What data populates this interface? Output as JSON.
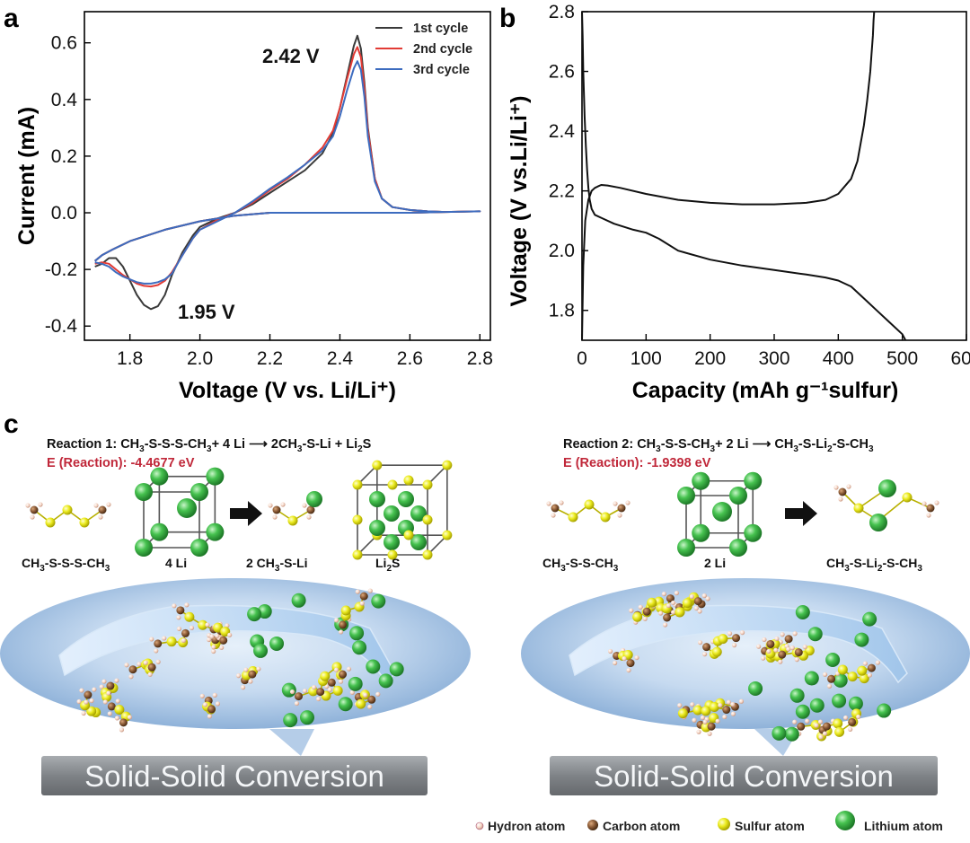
{
  "panels": {
    "a": "a",
    "b": "b",
    "c": "c"
  },
  "chart_data": [
    {
      "type": "line",
      "panel": "a",
      "xlabel": "Voltage (V vs. Li/Li⁺)",
      "ylabel": "Current (mA)",
      "xlim": [
        1.67,
        2.83
      ],
      "ylim": [
        -0.45,
        0.71
      ],
      "xticks": [
        1.8,
        2.0,
        2.2,
        2.4,
        2.6,
        2.8
      ],
      "xtick_labels": [
        "1.8",
        "2.0",
        "2.2",
        "2.4",
        "2.6",
        "2.8"
      ],
      "yticks": [
        -0.4,
        -0.2,
        0.0,
        0.2,
        0.4,
        0.6
      ],
      "ytick_labels": [
        "-0.4",
        "-0.2",
        "0.0",
        "0.2",
        "0.4",
        "0.6"
      ],
      "annotations": [
        {
          "text": "2.42 V",
          "x": 2.27,
          "y": 0.53
        },
        {
          "text": "1.95 V",
          "x": 1.89,
          "y": -0.36
        }
      ],
      "series": [
        {
          "name": "1st cycle",
          "color": "#3a3a3a",
          "peak_anodic": 0.625,
          "peak_cathodic": -0.34,
          "x": [
            1.7,
            1.72,
            1.74,
            1.76,
            1.78,
            1.8,
            1.82,
            1.84,
            1.86,
            1.88,
            1.9,
            1.92,
            1.95,
            1.98,
            2.0,
            2.05,
            2.1,
            2.15,
            2.2,
            2.25,
            2.3,
            2.35,
            2.38,
            2.4,
            2.42,
            2.44,
            2.45,
            2.46,
            2.47,
            2.48,
            2.5,
            2.52,
            2.55,
            2.6,
            2.65,
            2.7,
            2.8,
            2.7,
            2.6,
            2.5,
            2.4,
            2.3,
            2.2,
            2.1,
            2.0,
            1.9,
            1.8,
            1.75,
            1.72,
            1.7
          ],
          "y": [
            -0.19,
            -0.18,
            -0.16,
            -0.16,
            -0.19,
            -0.24,
            -0.29,
            -0.325,
            -0.34,
            -0.33,
            -0.29,
            -0.22,
            -0.14,
            -0.08,
            -0.05,
            -0.02,
            0.0,
            0.03,
            0.07,
            0.11,
            0.15,
            0.21,
            0.28,
            0.37,
            0.48,
            0.59,
            0.625,
            0.58,
            0.46,
            0.3,
            0.12,
            0.05,
            0.02,
            0.01,
            0.005,
            0.003,
            0.005,
            0.003,
            0.0,
            0.0,
            0.0,
            0.0,
            0.0,
            -0.01,
            -0.03,
            -0.06,
            -0.1,
            -0.13,
            -0.15,
            -0.17
          ]
        },
        {
          "name": "2nd cycle",
          "color": "#e23b35",
          "peak_anodic": 0.585,
          "peak_cathodic": -0.26,
          "x": [
            1.7,
            1.72,
            1.74,
            1.76,
            1.78,
            1.8,
            1.82,
            1.84,
            1.86,
            1.88,
            1.9,
            1.92,
            1.95,
            1.98,
            2.0,
            2.05,
            2.1,
            2.15,
            2.2,
            2.25,
            2.3,
            2.35,
            2.38,
            2.4,
            2.42,
            2.44,
            2.45,
            2.46,
            2.47,
            2.48,
            2.5,
            2.52,
            2.55,
            2.6,
            2.65,
            2.7,
            2.8,
            2.7,
            2.6,
            2.5,
            2.4,
            2.3,
            2.2,
            2.1,
            2.0,
            1.9,
            1.8,
            1.75,
            1.72,
            1.7
          ],
          "y": [
            -0.18,
            -0.175,
            -0.18,
            -0.2,
            -0.22,
            -0.235,
            -0.25,
            -0.258,
            -0.26,
            -0.255,
            -0.24,
            -0.21,
            -0.15,
            -0.09,
            -0.06,
            -0.025,
            0.0,
            0.035,
            0.08,
            0.12,
            0.17,
            0.23,
            0.29,
            0.37,
            0.47,
            0.56,
            0.585,
            0.55,
            0.44,
            0.29,
            0.12,
            0.05,
            0.02,
            0.01,
            0.005,
            0.003,
            0.005,
            0.003,
            0.0,
            0.0,
            0.0,
            0.0,
            0.0,
            -0.01,
            -0.03,
            -0.06,
            -0.1,
            -0.13,
            -0.15,
            -0.17
          ]
        },
        {
          "name": "3rd cycle",
          "color": "#3d6cbf",
          "peak_anodic": 0.535,
          "peak_cathodic": -0.25,
          "x": [
            1.7,
            1.72,
            1.74,
            1.76,
            1.78,
            1.8,
            1.82,
            1.84,
            1.86,
            1.88,
            1.9,
            1.92,
            1.95,
            1.98,
            2.0,
            2.05,
            2.1,
            2.15,
            2.2,
            2.25,
            2.3,
            2.35,
            2.38,
            2.4,
            2.42,
            2.44,
            2.45,
            2.46,
            2.47,
            2.48,
            2.5,
            2.52,
            2.55,
            2.6,
            2.65,
            2.7,
            2.8,
            2.7,
            2.6,
            2.5,
            2.4,
            2.3,
            2.2,
            2.1,
            2.0,
            1.9,
            1.8,
            1.75,
            1.72,
            1.7
          ],
          "y": [
            -0.175,
            -0.18,
            -0.19,
            -0.21,
            -0.225,
            -0.235,
            -0.245,
            -0.25,
            -0.25,
            -0.245,
            -0.235,
            -0.215,
            -0.15,
            -0.09,
            -0.06,
            -0.03,
            0.0,
            0.04,
            0.085,
            0.125,
            0.17,
            0.22,
            0.27,
            0.34,
            0.43,
            0.51,
            0.535,
            0.505,
            0.41,
            0.27,
            0.11,
            0.05,
            0.02,
            0.01,
            0.005,
            0.003,
            0.005,
            0.003,
            0.0,
            0.0,
            0.0,
            0.0,
            0.0,
            -0.01,
            -0.03,
            -0.06,
            -0.1,
            -0.13,
            -0.15,
            -0.17
          ]
        }
      ]
    },
    {
      "type": "line",
      "panel": "b",
      "xlabel": "Capacity (mAh g⁻¹sulfur)",
      "ylabel": "Voltage (V vs.Li/Li⁺)",
      "xlim": [
        0,
        600
      ],
      "ylim": [
        1.7,
        2.8
      ],
      "xticks": [
        0,
        100,
        200,
        300,
        400,
        500,
        600
      ],
      "xtick_labels": [
        "0",
        "100",
        "200",
        "300",
        "400",
        "500",
        "600"
      ],
      "yticks": [
        1.8,
        2.0,
        2.2,
        2.4,
        2.6,
        2.8
      ],
      "ytick_labels": [
        "1.8",
        "2.0",
        "2.2",
        "2.4",
        "2.6",
        "2.8"
      ],
      "series": [
        {
          "name": "discharge",
          "color": "#111111",
          "x": [
            0,
            1,
            2,
            4,
            6,
            8,
            10,
            12,
            15,
            20,
            30,
            50,
            80,
            100,
            120,
            150,
            200,
            250,
            300,
            350,
            380,
            400,
            420,
            440,
            460,
            480,
            500,
            505
          ],
          "y": [
            2.8,
            2.72,
            2.6,
            2.45,
            2.35,
            2.27,
            2.21,
            2.17,
            2.14,
            2.12,
            2.11,
            2.09,
            2.07,
            2.06,
            2.04,
            2.0,
            1.97,
            1.95,
            1.935,
            1.92,
            1.91,
            1.9,
            1.88,
            1.84,
            1.8,
            1.76,
            1.72,
            1.7
          ]
        },
        {
          "name": "charge",
          "color": "#111111",
          "x": [
            0,
            2,
            5,
            10,
            15,
            20,
            25,
            30,
            40,
            60,
            100,
            150,
            200,
            250,
            300,
            350,
            380,
            400,
            420,
            430,
            440,
            445,
            450,
            452,
            454,
            455,
            456
          ],
          "y": [
            1.7,
            1.95,
            2.1,
            2.17,
            2.2,
            2.21,
            2.215,
            2.22,
            2.218,
            2.21,
            2.19,
            2.17,
            2.16,
            2.155,
            2.155,
            2.16,
            2.17,
            2.19,
            2.24,
            2.3,
            2.42,
            2.5,
            2.6,
            2.66,
            2.72,
            2.77,
            2.8
          ]
        }
      ]
    }
  ],
  "legend": [
    {
      "label": "1st cycle",
      "color": "#3a3a3a"
    },
    {
      "label": "2nd cycle",
      "color": "#e23b35"
    },
    {
      "label": "3rd cycle",
      "color": "#3d6cbf"
    }
  ],
  "reaction1": {
    "label": "Reaction 1:",
    "eq_main": "CH",
    "eq_s1": "3",
    "eq_mid": "-S-S-S-CH",
    "eq_s2": "3",
    "eq_after": "+ 4 Li",
    "eq_prod": "2CH",
    "eq_s3": "3",
    "eq_prod2": "-S-Li + Li",
    "eq_s4": "2",
    "eq_prod3": "S",
    "energy": "E (Reaction): -4.4677 eV",
    "molecules": [
      {
        "pre": "CH",
        "sub": "3",
        "post": "-S-S-S-CH",
        "sub2": "3",
        "post2": ""
      },
      {
        "pre": "4 Li",
        "sub": "",
        "post": "",
        "sub2": "",
        "post2": ""
      },
      {
        "pre": "2 CH",
        "sub": "3",
        "post": "-S-Li",
        "sub2": "",
        "post2": ""
      },
      {
        "pre": "Li",
        "sub": "2",
        "post": "S",
        "sub2": "",
        "post2": ""
      }
    ]
  },
  "reaction2": {
    "label": "Reaction 2:",
    "eq_main": "CH",
    "eq_s1": "3",
    "eq_mid": "-S-S-CH",
    "eq_s2": "3",
    "eq_after": "+ 2 Li",
    "eq_prod": "CH",
    "eq_s3": "3",
    "eq_prod2": "-S-Li",
    "eq_s4": "2",
    "eq_prod3": "-S-CH",
    "eq_s5": "3",
    "energy": "E (Reaction): -1.9398 eV",
    "molecules": [
      {
        "pre": "CH",
        "sub": "3",
        "post": "-S-S-CH",
        "sub2": "3",
        "post2": ""
      },
      {
        "pre": "2 Li",
        "sub": "",
        "post": "",
        "sub2": "",
        "post2": ""
      },
      {
        "pre": "CH",
        "sub": "3",
        "post": "-S-Li",
        "sub2": "2",
        "post2": "-S-CH",
        "sub3": "3"
      }
    ]
  },
  "banner_text": "Solid-Solid Conversion",
  "atom_key": [
    {
      "label": "Hydron atom",
      "color": "#f3d6c8"
    },
    {
      "label": "Carbon atom",
      "color": "#8a5a36"
    },
    {
      "label": "Sulfur atom",
      "color": "#f0ee2e"
    },
    {
      "label": "Lithium atom",
      "color": "#3fbf4a"
    }
  ]
}
